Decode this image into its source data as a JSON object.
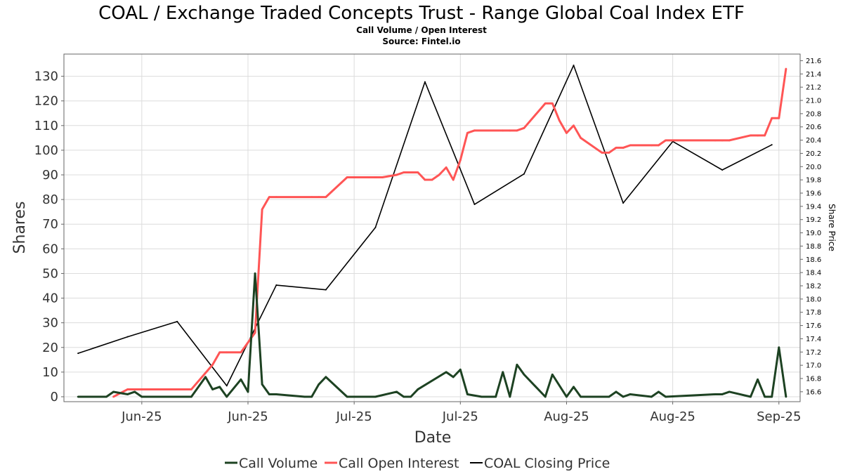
{
  "chart_data": {
    "type": "line",
    "title": "COAL / Exchange Traded Concepts Trust - Range Global Coal Index ETF",
    "subtitle": "Call Volume / Open Interest",
    "source": "Source: Fintel.io",
    "xlabel": "Date",
    "ylabel": "Shares",
    "y2label": "Share Price",
    "x_ticks": [
      {
        "label": "Jun-25",
        "date": "2025-06-01"
      },
      {
        "label": "Jun-25",
        "date": "2025-06-16"
      },
      {
        "label": "Jul-25",
        "date": "2025-07-01"
      },
      {
        "label": "Jul-25",
        "date": "2025-07-16"
      },
      {
        "label": "Aug-25",
        "date": "2025-07-31"
      },
      {
        "label": "Aug-25",
        "date": "2025-08-15"
      },
      {
        "label": "Sep-25",
        "date": "2025-08-30"
      }
    ],
    "xlim": [
      "2025-05-21",
      "2025-09-02"
    ],
    "ylim": [
      -2,
      139
    ],
    "yticks": [
      0,
      10,
      20,
      30,
      40,
      50,
      60,
      70,
      80,
      90,
      100,
      110,
      120,
      130
    ],
    "y2lim": [
      16.45,
      21.7
    ],
    "y2ticks": [
      16.6,
      16.8,
      17.0,
      17.2,
      17.4,
      17.6,
      17.8,
      18.0,
      18.2,
      18.4,
      18.6,
      18.8,
      19.0,
      19.2,
      19.4,
      19.6,
      19.8,
      20.0,
      20.2,
      20.4,
      20.6,
      20.8,
      21.0,
      21.2,
      21.4,
      21.6
    ],
    "y2tick_labels": [
      "16.6",
      "16.8",
      "17.0",
      "17.2",
      "17.4",
      "17.6",
      "17.8",
      "18.0",
      "18.2",
      "18.4",
      "18.6",
      "18.8",
      "19.0",
      "19.2",
      "19.4",
      "19.6",
      "19.8",
      "20.0",
      "20.2",
      "20.4",
      "20.6",
      "20.8",
      "21.0",
      "21.2",
      "21.4",
      "21.6"
    ],
    "grid": true,
    "legend_position": "bottom",
    "series": [
      {
        "name": "Call Volume",
        "color": "#1d4222",
        "axis": "left",
        "x": [
          "2025-05-23",
          "2025-05-24",
          "2025-05-25",
          "2025-05-27",
          "2025-05-28",
          "2025-05-30",
          "2025-05-31",
          "2025-06-01",
          "2025-06-02",
          "2025-06-06",
          "2025-06-08",
          "2025-06-10",
          "2025-06-11",
          "2025-06-12",
          "2025-06-13",
          "2025-06-15",
          "2025-06-16",
          "2025-06-17",
          "2025-06-18",
          "2025-06-19",
          "2025-06-20",
          "2025-06-24",
          "2025-06-25",
          "2025-06-26",
          "2025-06-27",
          "2025-06-30",
          "2025-07-01",
          "2025-07-03",
          "2025-07-04",
          "2025-07-07",
          "2025-07-08",
          "2025-07-09",
          "2025-07-10",
          "2025-07-14",
          "2025-07-15",
          "2025-07-16",
          "2025-07-17",
          "2025-07-19",
          "2025-07-21",
          "2025-07-22",
          "2025-07-23",
          "2025-07-24",
          "2025-07-25",
          "2025-07-28",
          "2025-07-29",
          "2025-07-31",
          "2025-08-01",
          "2025-08-02",
          "2025-08-05",
          "2025-08-06",
          "2025-08-07",
          "2025-08-08",
          "2025-08-09",
          "2025-08-12",
          "2025-08-13",
          "2025-08-14",
          "2025-08-21",
          "2025-08-22",
          "2025-08-23",
          "2025-08-26",
          "2025-08-27",
          "2025-08-28",
          "2025-08-29",
          "2025-08-30",
          "2025-08-31"
        ],
        "values": [
          0,
          0,
          0,
          0,
          2,
          1,
          2,
          0,
          0,
          0,
          0,
          8,
          3,
          4,
          0,
          7,
          2,
          50,
          5,
          1,
          1,
          0,
          0,
          5,
          8,
          0,
          0,
          0,
          0,
          2,
          0,
          0,
          3,
          10,
          8,
          11,
          1,
          0,
          0,
          10,
          0,
          13,
          9,
          0,
          9,
          0,
          4,
          0,
          0,
          0,
          2,
          0,
          1,
          0,
          2,
          0,
          1,
          1,
          2,
          0,
          7,
          0,
          0,
          20,
          0
        ]
      },
      {
        "name": "Call Open Interest",
        "color": "#ff5555",
        "axis": "left",
        "x": [
          "2025-05-28",
          "2025-05-30",
          "2025-05-31",
          "2025-06-06",
          "2025-06-08",
          "2025-06-11",
          "2025-06-12",
          "2025-06-13",
          "2025-06-15",
          "2025-06-17",
          "2025-06-18",
          "2025-06-19",
          "2025-06-20",
          "2025-06-25",
          "2025-06-26",
          "2025-06-27",
          "2025-06-30",
          "2025-07-01",
          "2025-07-03",
          "2025-07-04",
          "2025-07-05",
          "2025-07-07",
          "2025-07-08",
          "2025-07-09",
          "2025-07-10",
          "2025-07-11",
          "2025-07-12",
          "2025-07-13",
          "2025-07-14",
          "2025-07-15",
          "2025-07-16",
          "2025-07-17",
          "2025-07-18",
          "2025-07-22",
          "2025-07-23",
          "2025-07-24",
          "2025-07-25",
          "2025-07-28",
          "2025-07-29",
          "2025-07-30",
          "2025-07-31",
          "2025-08-01",
          "2025-08-02",
          "2025-08-05",
          "2025-08-06",
          "2025-08-07",
          "2025-08-08",
          "2025-08-09",
          "2025-08-12",
          "2025-08-13",
          "2025-08-14",
          "2025-08-21",
          "2025-08-22",
          "2025-08-23",
          "2025-08-26",
          "2025-08-27",
          "2025-08-28",
          "2025-08-29",
          "2025-08-30",
          "2025-08-31"
        ],
        "values": [
          0,
          3,
          3,
          3,
          3,
          13,
          18,
          18,
          18,
          26,
          76,
          81,
          81,
          81,
          81,
          81,
          89,
          89,
          89,
          89,
          89,
          90,
          91,
          91,
          91,
          88,
          88,
          90,
          93,
          88,
          96,
          107,
          108,
          108,
          108,
          108,
          109,
          119,
          119,
          112,
          107,
          110,
          105,
          99,
          99,
          101,
          101,
          102,
          102,
          102,
          104,
          104,
          104,
          104,
          106,
          106,
          106,
          113,
          113,
          133
        ]
      },
      {
        "name": "COAL Closing Price",
        "color": "#000000",
        "axis": "right",
        "x": [
          "2025-05-23",
          "2025-05-30",
          "2025-06-06",
          "2025-06-13",
          "2025-06-20",
          "2025-06-27",
          "2025-07-04",
          "2025-07-11",
          "2025-07-18",
          "2025-07-25",
          "2025-08-01",
          "2025-08-08",
          "2025-08-15",
          "2025-08-22",
          "2025-08-29"
        ],
        "values": [
          17.18,
          17.43,
          17.66,
          16.69,
          18.21,
          18.14,
          19.08,
          21.28,
          19.43,
          19.89,
          21.53,
          19.45,
          20.38,
          19.95,
          20.33
        ]
      }
    ]
  }
}
